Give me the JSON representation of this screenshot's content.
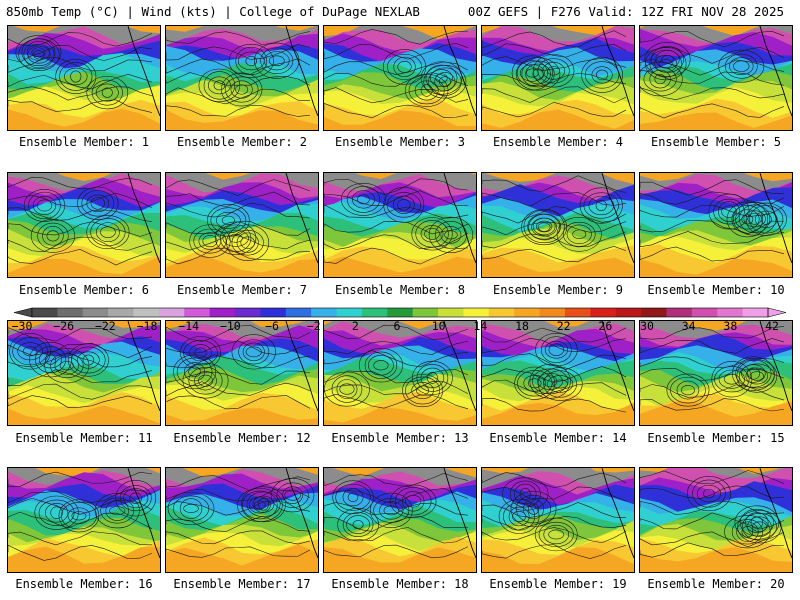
{
  "header": {
    "left": "850mb Temp (°C) | Wind (kts) | College of DuPage NEXLAB",
    "right": "00Z GEFS | F276 Valid: 12Z FRI NOV 28 2025"
  },
  "members": [
    "Ensemble Member: 1",
    "Ensemble Member: 2",
    "Ensemble Member: 3",
    "Ensemble Member: 4",
    "Ensemble Member: 5",
    "Ensemble Member: 6",
    "Ensemble Member: 7",
    "Ensemble Member: 8",
    "Ensemble Member: 9",
    "Ensemble Member: 10",
    "Ensemble Member: 11",
    "Ensemble Member: 12",
    "Ensemble Member: 13",
    "Ensemble Member: 14",
    "Ensemble Member: 15",
    "Ensemble Member: 16",
    "Ensemble Member: 17",
    "Ensemble Member: 18",
    "Ensemble Member: 19",
    "Ensemble Member: 20"
  ],
  "colorbar": {
    "labels": [
      "−30",
      "−26",
      "−22",
      "−18",
      "−14",
      "−10",
      "−6",
      "−2",
      "2",
      "6",
      "10",
      "14",
      "18",
      "22",
      "26",
      "30",
      "34",
      "38",
      "42"
    ],
    "colors": [
      "#4a4a4a",
      "#6e6e6e",
      "#8c8c8c",
      "#a8a8a8",
      "#c0c0c0",
      "#d9a3e0",
      "#d05ad8",
      "#a020c8",
      "#6a2bd0",
      "#3030d8",
      "#2f6fe0",
      "#36b0e8",
      "#30d0d0",
      "#2cc07a",
      "#249a3a",
      "#7ec63a",
      "#c8e03a",
      "#f5f03a",
      "#f8c832",
      "#f5a623",
      "#f08a1e",
      "#e8501a",
      "#d8201a",
      "#b81818",
      "#901818",
      "#b0307a",
      "#d050b0",
      "#e078d0",
      "#f0a0e8"
    ]
  }
}
